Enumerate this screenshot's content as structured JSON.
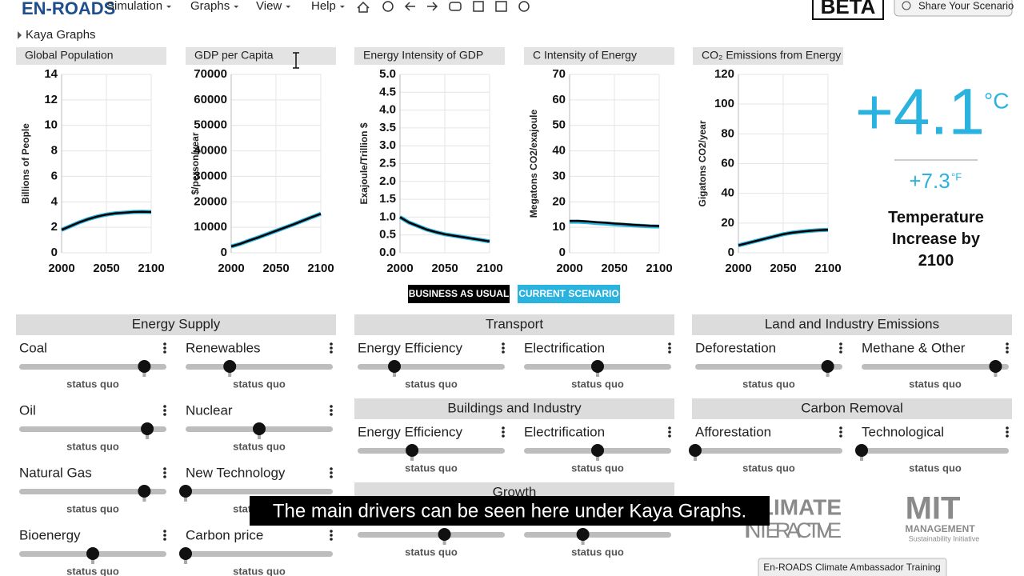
{
  "menu": {
    "logo": "EN-ROADS",
    "items": [
      "Simulation",
      "Graphs",
      "View",
      "Help"
    ],
    "beta": "BETA",
    "share": "Share Your Scenario"
  },
  "kaya_toggle": "Kaya Graphs",
  "chart_data": [
    {
      "type": "line",
      "title": "Global Population",
      "y_label": "Billions of People",
      "x": [
        2000,
        2010,
        2020,
        2030,
        2040,
        2050,
        2060,
        2070,
        2080,
        2090,
        2100
      ],
      "xlim": [
        2000,
        2100
      ],
      "xticks": [
        2000,
        2050,
        2100
      ],
      "ylim": [
        0,
        14
      ],
      "yticks": [
        0,
        2,
        4,
        6,
        8,
        10,
        12,
        14
      ],
      "grid": true,
      "series": [
        {
          "color": "#2bb3e0",
          "values": [
            1.8,
            2.1,
            2.4,
            2.65,
            2.85,
            3.0,
            3.1,
            3.15,
            3.2,
            3.22,
            3.2
          ]
        },
        {
          "color": "#000000",
          "values": [
            1.8,
            2.1,
            2.4,
            2.65,
            2.85,
            3.0,
            3.1,
            3.15,
            3.2,
            3.22,
            3.2
          ]
        }
      ]
    },
    {
      "type": "line",
      "title": "GDP per Capita",
      "y_label": "$/person/year",
      "x": [
        2000,
        2010,
        2020,
        2030,
        2040,
        2050,
        2060,
        2070,
        2080,
        2090,
        2100
      ],
      "xlim": [
        2000,
        2100
      ],
      "xticks": [
        2000,
        2050,
        2100
      ],
      "ylim": [
        0,
        70000
      ],
      "yticks": [
        0,
        10000,
        20000,
        30000,
        40000,
        50000,
        60000,
        70000
      ],
      "grid": true,
      "series": [
        {
          "color": "#2bb3e0",
          "values": [
            2500,
            3500,
            4800,
            6000,
            7300,
            8600,
            9900,
            11200,
            12600,
            14000,
            15300
          ]
        },
        {
          "color": "#000000",
          "values": [
            2500,
            3500,
            4800,
            6000,
            7300,
            8600,
            9900,
            11200,
            12600,
            14000,
            15300
          ]
        }
      ]
    },
    {
      "type": "line",
      "title": "Energy Intensity of GDP",
      "y_label": "Exajoule/Trillion $",
      "x": [
        2000,
        2010,
        2020,
        2030,
        2040,
        2050,
        2060,
        2070,
        2080,
        2090,
        2100
      ],
      "xlim": [
        2000,
        2100
      ],
      "xticks": [
        2000,
        2050,
        2100
      ],
      "ylim": [
        0,
        5
      ],
      "yticks": [
        {
          "value": 0,
          "label": "0.0"
        },
        0.5,
        {
          "value": 1,
          "label": "1.0"
        },
        1.5,
        {
          "value": 2,
          "label": "2.0"
        },
        2.5,
        {
          "value": 3,
          "label": "3.0"
        },
        3.5,
        {
          "value": 4,
          "label": "4.0"
        },
        4.5,
        {
          "value": 5,
          "label": "5.0"
        }
      ],
      "grid": true,
      "series": [
        {
          "color": "#2bb3e0",
          "values": [
            1.0,
            0.85,
            0.75,
            0.65,
            0.58,
            0.52,
            0.48,
            0.44,
            0.4,
            0.36,
            0.32
          ]
        },
        {
          "color": "#000000",
          "values": [
            1.0,
            0.85,
            0.75,
            0.65,
            0.58,
            0.52,
            0.48,
            0.44,
            0.4,
            0.36,
            0.32
          ]
        }
      ]
    },
    {
      "type": "line",
      "title": "C Intensity of Energy",
      "y_label": "Megatons CO2/exajoule",
      "x": [
        2000,
        2010,
        2020,
        2030,
        2040,
        2050,
        2060,
        2070,
        2080,
        2090,
        2100
      ],
      "xlim": [
        2000,
        2100
      ],
      "xticks": [
        2000,
        2050,
        2100
      ],
      "ylim": [
        0,
        70
      ],
      "yticks": [
        0,
        10,
        20,
        30,
        40,
        50,
        60,
        70
      ],
      "grid": true,
      "series": [
        {
          "color": "#2bb3e0",
          "values": [
            12.2,
            12.2,
            12.0,
            11.7,
            11.5,
            11.2,
            11.0,
            10.8,
            10.6,
            10.4,
            10.3
          ]
        },
        {
          "color": "#000000",
          "values": [
            12.5,
            12.5,
            12.3,
            12.0,
            11.8,
            11.5,
            11.3,
            11.0,
            10.8,
            10.6,
            10.5
          ]
        }
      ]
    },
    {
      "type": "line",
      "title": "CO₂ Emissions from Energy",
      "y_label": "Gigatons CO2/year",
      "x": [
        2000,
        2010,
        2020,
        2030,
        2040,
        2050,
        2060,
        2070,
        2080,
        2090,
        2100
      ],
      "xlim": [
        2000,
        2100
      ],
      "xticks": [
        2000,
        2050,
        2100
      ],
      "ylim": [
        0,
        120
      ],
      "yticks": [
        0,
        20,
        40,
        60,
        80,
        100,
        120
      ],
      "grid": true,
      "series": [
        {
          "color": "#2bb3e0",
          "values": [
            5,
            6.5,
            8,
            9.5,
            11,
            12.5,
            13.5,
            14.2,
            14.8,
            15.2,
            15.5
          ]
        },
        {
          "color": "#000000",
          "values": [
            5,
            6.5,
            8,
            9.5,
            11,
            12.5,
            13.5,
            14.2,
            14.8,
            15.2,
            15.5
          ]
        }
      ]
    }
  ],
  "legend": [
    {
      "name": "BUSINESS AS USUAL",
      "color": "#000000"
    },
    {
      "name": "CURRENT SCENARIO",
      "color": "#2bb3e0"
    }
  ],
  "temperature": {
    "celsius": "+4.1",
    "celsius_unit": "°C",
    "fahrenheit": "+7.3",
    "fahrenheit_unit": "°F",
    "label": "Temperature Increase by 2100"
  },
  "sections": [
    {
      "title": "Energy Supply",
      "sliders": [
        {
          "label": "Coal",
          "status": "status quo",
          "value": 85
        },
        {
          "label": "Renewables",
          "status": "status quo",
          "value": 30
        },
        {
          "label": "Oil",
          "status": "status quo",
          "value": 87
        },
        {
          "label": "Nuclear",
          "status": "status quo",
          "value": 50
        },
        {
          "label": "Natural Gas",
          "status": "status quo",
          "value": 85
        },
        {
          "label": "New Technology",
          "status": "status quo",
          "value": 0
        },
        {
          "label": "Bioenergy",
          "status": "status quo",
          "value": 50
        },
        {
          "label": "Carbon price",
          "status": "status quo",
          "value": 0
        }
      ]
    },
    {
      "title": "Transport",
      "sliders": [
        {
          "label": "Energy Efficiency",
          "status": "status quo",
          "value": 25
        },
        {
          "label": "Electrification",
          "status": "status quo",
          "value": 50
        }
      ]
    },
    {
      "title": "Buildings and Industry",
      "sliders": [
        {
          "label": "Energy Efficiency",
          "status": "status quo",
          "value": 37
        },
        {
          "label": "Electrification",
          "status": "status quo",
          "value": 50
        }
      ]
    },
    {
      "title": "Growth",
      "sliders": [
        {
          "status": "status quo",
          "value": 59
        },
        {
          "status": "status quo",
          "value": 40
        }
      ]
    },
    {
      "title": "Land and Industry Emissions",
      "sliders": [
        {
          "label": "Deforestation",
          "status": "status quo",
          "value": 90
        },
        {
          "label": "Methane & Other",
          "status": "status quo",
          "value": 91
        }
      ]
    },
    {
      "title": "Carbon Removal",
      "sliders": [
        {
          "label": "Afforestation",
          "status": "status quo",
          "value": 0
        },
        {
          "label": "Technological",
          "status": "status quo",
          "value": 0
        }
      ]
    }
  ],
  "caption": "The main drivers can be seen here under Kaya Graphs.",
  "logos": {
    "climate": "CLIMATE",
    "interactive": "INTERACTIVE",
    "mit": "MIT",
    "management": "MANAGEMENT",
    "initiative": "Sustainability Initiative"
  },
  "training_button": "En-ROADS Climate Ambassador Training"
}
